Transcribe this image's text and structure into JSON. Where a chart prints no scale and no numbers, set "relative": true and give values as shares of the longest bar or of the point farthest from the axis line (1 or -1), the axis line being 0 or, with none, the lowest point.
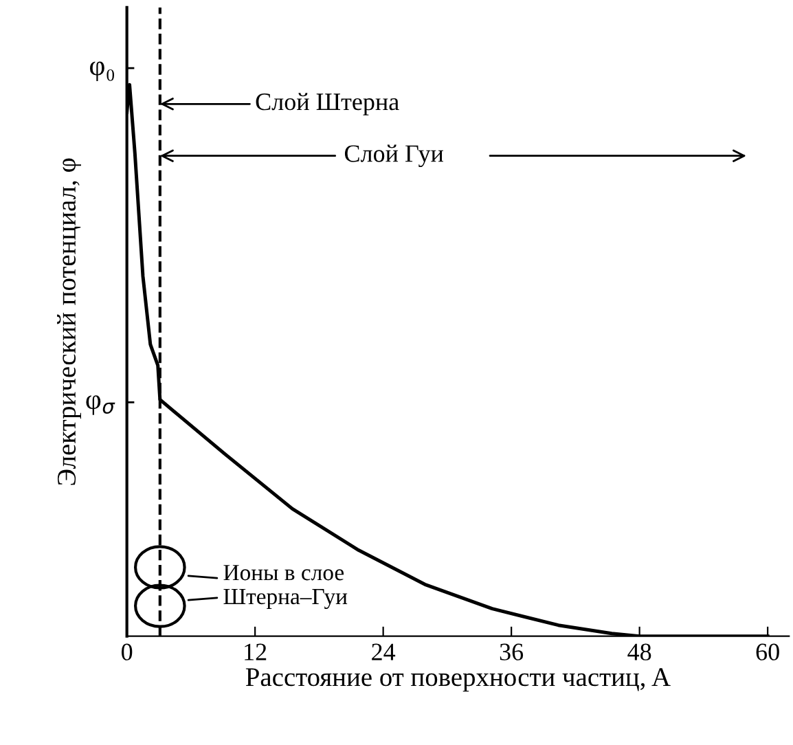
{
  "chart_data": {
    "type": "line",
    "relative": true,
    "xlabel": "Расстояние от поверхности частиц, A",
    "ylabel": "Электрический потенциал, φ",
    "x": [
      0,
      0.25,
      0.75,
      1.5,
      2.2,
      2.9,
      3.1,
      3.4,
      9.2,
      15.5,
      21.7,
      27.9,
      34.2,
      40.4,
      45.4,
      48,
      60
    ],
    "series": [
      {
        "color": "#000000",
        "values": [
          0.95,
          1.0,
          0.876,
          0.653,
          0.529,
          0.491,
          0.429,
          0.424,
          0.33,
          0.231,
          0.156,
          0.094,
          0.05,
          0.02,
          0.005,
          0,
          0
        ]
      }
    ],
    "xlim": [
      0,
      62
    ],
    "xticks": [
      0,
      12,
      24,
      36,
      48,
      60
    ],
    "grid": false,
    "legend": false,
    "marker": "none",
    "line_style": "solid",
    "ref_lines": [
      {
        "axis": "x",
        "value": 3.1,
        "color": "#000000",
        "line_style": "dashed"
      }
    ],
    "annotations": [
      "φ₀",
      "φ$_{σ}$",
      "Слой Штерна",
      "Слой Гуи",
      "Ионы в слое\nШтерна–Гуи"
    ]
  }
}
